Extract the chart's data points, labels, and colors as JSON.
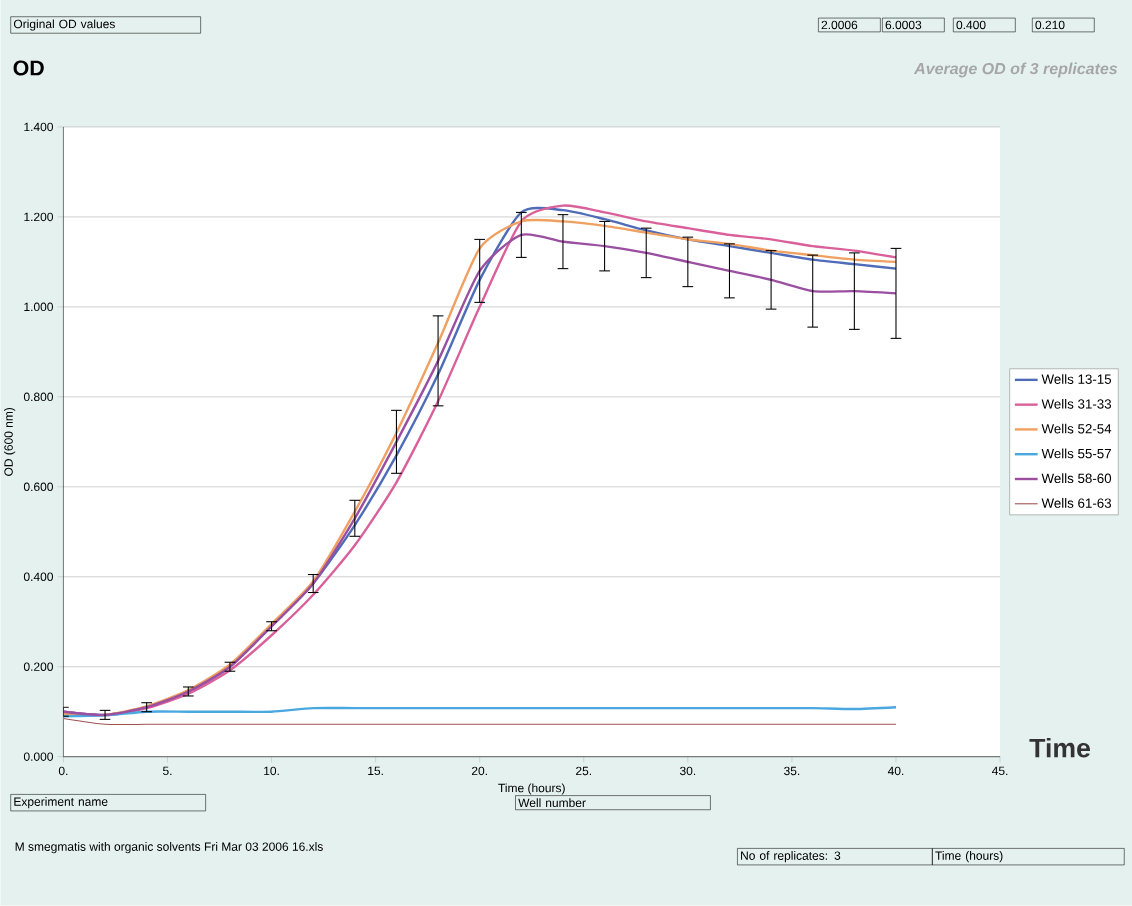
{
  "chart_data": {
    "type": "line",
    "title": "OD",
    "subtitle": "Average OD of 3 replicates",
    "xlabel": "Time (hours)",
    "ylabel": "OD (600 nm)",
    "annotations": [
      "Original OD values",
      "2.0006",
      "6.0003",
      "0.400",
      "0.210",
      "Time",
      "Experiment name",
      "Well number",
      "M smegmatis with organic solvents Fri Mar 03 2006 16.xls",
      "No of replicates: 3",
      "Time (hours)"
    ],
    "x": [
      0,
      2,
      4,
      6,
      8,
      10,
      12,
      14,
      16,
      18,
      20,
      22,
      24,
      26,
      28,
      30,
      32,
      34,
      36,
      38,
      40
    ],
    "series": [
      {
        "name": "Wells 13-15",
        "color": "#4f6cb8",
        "values": [
          0.1,
          0.093,
          0.11,
          0.145,
          0.2,
          0.29,
          0.385,
          0.515,
          0.67,
          0.85,
          1.06,
          1.21,
          1.215,
          1.195,
          1.17,
          1.15,
          1.135,
          1.12,
          1.105,
          1.095,
          1.085
        ]
      },
      {
        "name": "Wells 31-33",
        "color": "#d9609a",
        "values": [
          0.1,
          0.092,
          0.108,
          0.14,
          0.192,
          0.27,
          0.36,
          0.47,
          0.61,
          0.79,
          1.0,
          1.19,
          1.225,
          1.21,
          1.19,
          1.175,
          1.16,
          1.15,
          1.135,
          1.125,
          1.11
        ]
      },
      {
        "name": "Wells 52-54",
        "color": "#f0a060",
        "values": [
          0.095,
          0.093,
          0.112,
          0.148,
          0.205,
          0.295,
          0.39,
          0.545,
          0.72,
          0.92,
          1.13,
          1.19,
          1.19,
          1.18,
          1.165,
          1.15,
          1.14,
          1.125,
          1.115,
          1.105,
          1.1
        ]
      },
      {
        "name": "Wells 55-57",
        "color": "#4aa8e0",
        "values": [
          0.09,
          0.092,
          0.1,
          0.1,
          0.1,
          0.1,
          0.108,
          0.108,
          0.108,
          0.108,
          0.108,
          0.108,
          0.108,
          0.108,
          0.108,
          0.108,
          0.108,
          0.108,
          0.108,
          0.106,
          0.11
        ]
      },
      {
        "name": "Wells 58-60",
        "color": "#9b4fa0",
        "values": [
          0.1,
          0.093,
          0.11,
          0.145,
          0.2,
          0.29,
          0.385,
          0.53,
          0.7,
          0.88,
          1.08,
          1.16,
          1.145,
          1.135,
          1.12,
          1.1,
          1.08,
          1.06,
          1.035,
          1.035,
          1.03
        ],
        "errors": [
          0.01,
          0.01,
          0.01,
          0.01,
          0.01,
          0.01,
          0.02,
          0.04,
          0.07,
          0.1,
          0.07,
          0.05,
          0.06,
          0.055,
          0.055,
          0.055,
          0.06,
          0.065,
          0.08,
          0.085,
          0.1
        ]
      },
      {
        "name": "Wells 61-63",
        "color": "#a05050",
        "values": [
          0.085,
          0.072,
          0.072,
          0.072,
          0.072,
          0.072,
          0.072,
          0.072,
          0.072,
          0.072,
          0.072,
          0.072,
          0.072,
          0.072,
          0.072,
          0.072,
          0.072,
          0.072,
          0.072,
          0.072,
          0.072
        ]
      }
    ],
    "xlim": [
      0,
      45
    ],
    "ylim": [
      0,
      1.4
    ],
    "xticks": [
      {
        "value": 0,
        "label": "0."
      },
      {
        "value": 5,
        "label": "5."
      },
      {
        "value": 10,
        "label": "10."
      },
      {
        "value": 15,
        "label": "15."
      },
      {
        "value": 20,
        "label": "20."
      },
      {
        "value": 25,
        "label": "25."
      },
      {
        "value": 30,
        "label": "30."
      },
      {
        "value": 35,
        "label": "35."
      },
      {
        "value": 40,
        "label": "40."
      },
      {
        "value": 45,
        "label": "45."
      }
    ],
    "yticks": [
      {
        "value": 0,
        "label": "0.000"
      },
      {
        "value": 0.2,
        "label": "0.200"
      },
      {
        "value": 0.4,
        "label": "0.400"
      },
      {
        "value": 0.6,
        "label": "0.600"
      },
      {
        "value": 0.8,
        "label": "0.800"
      },
      {
        "value": 1.0,
        "label": "1.000"
      },
      {
        "value": 1.2,
        "label": "1.200"
      },
      {
        "value": 1.4,
        "label": "1.400"
      }
    ],
    "grid": "y",
    "legend": "right",
    "marker": "none",
    "line_style": "solid"
  }
}
